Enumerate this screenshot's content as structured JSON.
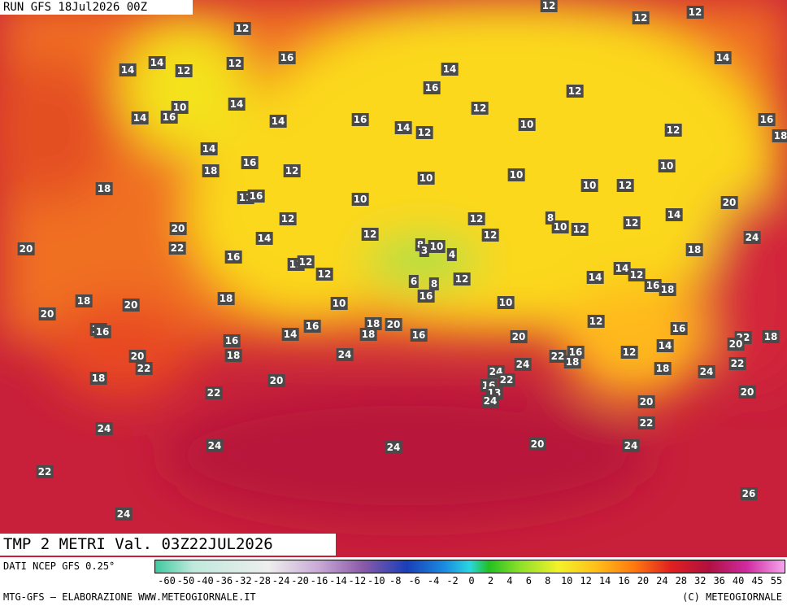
{
  "header": {
    "run": "RUN GFS 18Jul2026 00Z"
  },
  "footer": {
    "field": "TMP 2 METRI Val. 03Z22JUL2026",
    "source": "DATI NCEP GFS 0.25°",
    "credit": "MTG-GFS — ELABORAZIONE WWW.METEOGIORNALE.IT",
    "copyright": "(C) METEOGIORNALE"
  },
  "legend": {
    "ticks": [
      -60,
      -50,
      -40,
      -36,
      -32,
      -28,
      -24,
      -20,
      -16,
      -14,
      -12,
      -10,
      -8,
      -6,
      -4,
      -2,
      0,
      2,
      4,
      6,
      8,
      10,
      12,
      14,
      16,
      20,
      24,
      28,
      32,
      36,
      40,
      45,
      55
    ]
  },
  "map": {
    "labels": [
      12,
      12,
      12,
      12,
      14,
      14,
      12,
      12,
      16,
      14,
      14,
      16,
      12,
      10,
      14,
      14,
      16,
      12,
      14,
      16,
      14,
      12,
      10,
      12,
      16,
      18,
      14,
      16,
      18,
      12,
      10,
      10,
      10,
      18,
      11,
      16,
      10,
      10,
      12,
      20,
      12,
      12,
      8,
      10,
      12,
      12,
      14,
      20,
      24,
      20,
      22,
      14,
      12,
      12,
      8,
      3,
      10,
      4,
      16,
      11,
      12,
      12,
      18,
      14,
      12,
      12,
      6,
      8,
      16,
      18,
      14,
      18,
      20,
      18,
      10,
      16,
      10,
      20,
      18,
      14,
      16,
      16,
      14,
      18,
      20,
      16,
      20,
      12,
      16,
      22,
      18,
      20,
      16,
      18,
      24,
      14,
      12,
      20,
      22,
      22,
      16,
      18,
      24,
      22,
      24,
      18,
      18,
      20,
      24,
      22,
      16,
      13,
      24,
      22,
      20,
      20,
      24,
      22,
      24,
      24,
      20,
      24,
      22,
      26,
      24
    ]
  }
}
